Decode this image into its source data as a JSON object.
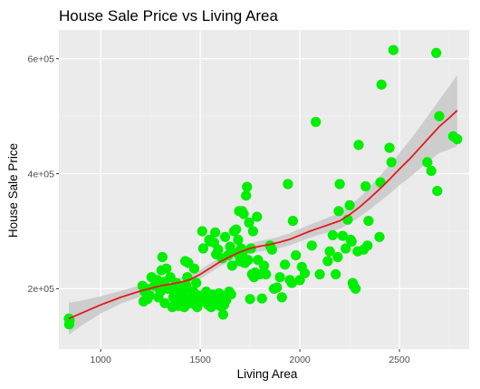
{
  "chart_data": {
    "type": "scatter",
    "title": "House Sale Price vs Living Area",
    "xlabel": "Living Area",
    "ylabel": "House Sale Price",
    "xlim": [
      790,
      2850
    ],
    "ylim": [
      95000,
      650000
    ],
    "x_ticks": [
      1000,
      1500,
      2000,
      2500
    ],
    "x_tick_labels": [
      "1000",
      "1500",
      "2000",
      "2500"
    ],
    "y_ticks": [
      200000,
      400000,
      600000
    ],
    "y_tick_labels": [
      "2e+05",
      "4e+05",
      "6e+05"
    ],
    "grid": true,
    "colors": {
      "panel": "#EBEBEB",
      "grid_major": "#FFFFFF",
      "points": "#00EE00",
      "smooth_line": "#E41A1C",
      "confidence_band": "#C8C8C8"
    },
    "points": [
      [
        840,
        148000
      ],
      [
        842,
        138000
      ],
      [
        844,
        145000
      ],
      [
        1210,
        205000
      ],
      [
        1215,
        178000
      ],
      [
        1220,
        195000
      ],
      [
        1228,
        200000
      ],
      [
        1235,
        182000
      ],
      [
        1245,
        188000
      ],
      [
        1255,
        220000
      ],
      [
        1270,
        205000
      ],
      [
        1285,
        215000
      ],
      [
        1290,
        185000
      ],
      [
        1300,
        195000
      ],
      [
        1305,
        232000
      ],
      [
        1310,
        255000
      ],
      [
        1320,
        212000
      ],
      [
        1322,
        175000
      ],
      [
        1330,
        235000
      ],
      [
        1335,
        200000
      ],
      [
        1340,
        200000
      ],
      [
        1350,
        220000
      ],
      [
        1360,
        168000
      ],
      [
        1365,
        185000
      ],
      [
        1370,
        192000
      ],
      [
        1375,
        173000
      ],
      [
        1380,
        210000
      ],
      [
        1385,
        205000
      ],
      [
        1390,
        170000
      ],
      [
        1400,
        190000
      ],
      [
        1405,
        183000
      ],
      [
        1410,
        178000
      ],
      [
        1415,
        195000
      ],
      [
        1420,
        168000
      ],
      [
        1425,
        248000
      ],
      [
        1430,
        205000
      ],
      [
        1435,
        220000
      ],
      [
        1440,
        245000
      ],
      [
        1445,
        183000
      ],
      [
        1450,
        175000
      ],
      [
        1455,
        182000
      ],
      [
        1460,
        178000
      ],
      [
        1465,
        195000
      ],
      [
        1470,
        235000
      ],
      [
        1475,
        172000
      ],
      [
        1480,
        210000
      ],
      [
        1485,
        168000
      ],
      [
        1490,
        175000
      ],
      [
        1495,
        188000
      ],
      [
        1500,
        183000
      ],
      [
        1505,
        178000
      ],
      [
        1510,
        300000
      ],
      [
        1515,
        270000
      ],
      [
        1520,
        180000
      ],
      [
        1530,
        195000
      ],
      [
        1535,
        188000
      ],
      [
        1540,
        172000
      ],
      [
        1545,
        285000
      ],
      [
        1550,
        282000
      ],
      [
        1555,
        168000
      ],
      [
        1560,
        183000
      ],
      [
        1565,
        190000
      ],
      [
        1570,
        280000
      ],
      [
        1575,
        298000
      ],
      [
        1580,
        260000
      ],
      [
        1585,
        175000
      ],
      [
        1590,
        268000
      ],
      [
        1595,
        192000
      ],
      [
        1600,
        170000
      ],
      [
        1605,
        185000
      ],
      [
        1610,
        253000
      ],
      [
        1615,
        155000
      ],
      [
        1620,
        172000
      ],
      [
        1625,
        290000
      ],
      [
        1630,
        180000
      ],
      [
        1640,
        258000
      ],
      [
        1645,
        195000
      ],
      [
        1650,
        273000
      ],
      [
        1655,
        190000
      ],
      [
        1660,
        240000
      ],
      [
        1670,
        300000
      ],
      [
        1680,
        303000
      ],
      [
        1685,
        262000
      ],
      [
        1690,
        285000
      ],
      [
        1695,
        335000
      ],
      [
        1700,
        248000
      ],
      [
        1705,
        270000
      ],
      [
        1710,
        335000
      ],
      [
        1712,
        262000
      ],
      [
        1718,
        330000
      ],
      [
        1722,
        245000
      ],
      [
        1725,
        245000
      ],
      [
        1730,
        362000
      ],
      [
        1735,
        377000
      ],
      [
        1740,
        250000
      ],
      [
        1745,
        315000
      ],
      [
        1750,
        182000
      ],
      [
        1755,
        270000
      ],
      [
        1760,
        225000
      ],
      [
        1765,
        300000
      ],
      [
        1770,
        220000
      ],
      [
        1775,
        228000
      ],
      [
        1785,
        325000
      ],
      [
        1790,
        250000
      ],
      [
        1800,
        225000
      ],
      [
        1810,
        183000
      ],
      [
        1820,
        240000
      ],
      [
        1830,
        225000
      ],
      [
        1850,
        275000
      ],
      [
        1860,
        268000
      ],
      [
        1870,
        200000
      ],
      [
        1885,
        202000
      ],
      [
        1900,
        220000
      ],
      [
        1910,
        185000
      ],
      [
        1925,
        242000
      ],
      [
        1940,
        382000
      ],
      [
        1950,
        215000
      ],
      [
        1960,
        210000
      ],
      [
        1965,
        318000
      ],
      [
        1980,
        258000
      ],
      [
        2000,
        215000
      ],
      [
        2010,
        238000
      ],
      [
        2025,
        227000
      ],
      [
        2060,
        275000
      ],
      [
        2080,
        490000
      ],
      [
        2100,
        225000
      ],
      [
        2140,
        248000
      ],
      [
        2150,
        265000
      ],
      [
        2165,
        293000
      ],
      [
        2180,
        225000
      ],
      [
        2190,
        255000
      ],
      [
        2195,
        335000
      ],
      [
        2200,
        382000
      ],
      [
        2215,
        292000
      ],
      [
        2230,
        270000
      ],
      [
        2240,
        320000
      ],
      [
        2250,
        345000
      ],
      [
        2255,
        285000
      ],
      [
        2260,
        282000
      ],
      [
        2265,
        210000
      ],
      [
        2270,
        205000
      ],
      [
        2280,
        200000
      ],
      [
        2290,
        265000
      ],
      [
        2295,
        450000
      ],
      [
        2320,
        268000
      ],
      [
        2330,
        378000
      ],
      [
        2340,
        275000
      ],
      [
        2345,
        318000
      ],
      [
        2400,
        290000
      ],
      [
        2405,
        385000
      ],
      [
        2410,
        555000
      ],
      [
        2450,
        445000
      ],
      [
        2460,
        420000
      ],
      [
        2470,
        615000
      ],
      [
        2640,
        420000
      ],
      [
        2660,
        405000
      ],
      [
        2685,
        610000
      ],
      [
        2690,
        370000
      ],
      [
        2700,
        500000
      ],
      [
        2770,
        465000
      ],
      [
        2790,
        460000
      ]
    ],
    "smooth_line": [
      [
        840,
        148000
      ],
      [
        900,
        157000
      ],
      [
        1000,
        172000
      ],
      [
        1100,
        185000
      ],
      [
        1200,
        196000
      ],
      [
        1300,
        205000
      ],
      [
        1400,
        211000
      ],
      [
        1450,
        216000
      ],
      [
        1500,
        225000
      ],
      [
        1550,
        236000
      ],
      [
        1600,
        247000
      ],
      [
        1650,
        256000
      ],
      [
        1700,
        264000
      ],
      [
        1750,
        270000
      ],
      [
        1800,
        274000
      ],
      [
        1850,
        277000
      ],
      [
        1900,
        281000
      ],
      [
        1950,
        286000
      ],
      [
        2000,
        293000
      ],
      [
        2050,
        300000
      ],
      [
        2100,
        306000
      ],
      [
        2150,
        312000
      ],
      [
        2200,
        318000
      ],
      [
        2250,
        329000
      ],
      [
        2300,
        342000
      ],
      [
        2350,
        357000
      ],
      [
        2400,
        373000
      ],
      [
        2450,
        390000
      ],
      [
        2500,
        408000
      ],
      [
        2550,
        425000
      ],
      [
        2600,
        444000
      ],
      [
        2650,
        463000
      ],
      [
        2700,
        482000
      ],
      [
        2750,
        497000
      ],
      [
        2790,
        510000
      ]
    ],
    "band_halfwidth": [
      [
        840,
        28000
      ],
      [
        900,
        22000
      ],
      [
        1000,
        15000
      ],
      [
        1100,
        11000
      ],
      [
        1200,
        10000
      ],
      [
        1300,
        9000
      ],
      [
        1400,
        8000
      ],
      [
        1500,
        8000
      ],
      [
        1600,
        8000
      ],
      [
        1700,
        8000
      ],
      [
        1800,
        9000
      ],
      [
        1900,
        10000
      ],
      [
        2000,
        11000
      ],
      [
        2100,
        12000
      ],
      [
        2200,
        14000
      ],
      [
        2300,
        17000
      ],
      [
        2400,
        22000
      ],
      [
        2500,
        28000
      ],
      [
        2600,
        36000
      ],
      [
        2700,
        46000
      ],
      [
        2790,
        62000
      ]
    ]
  }
}
